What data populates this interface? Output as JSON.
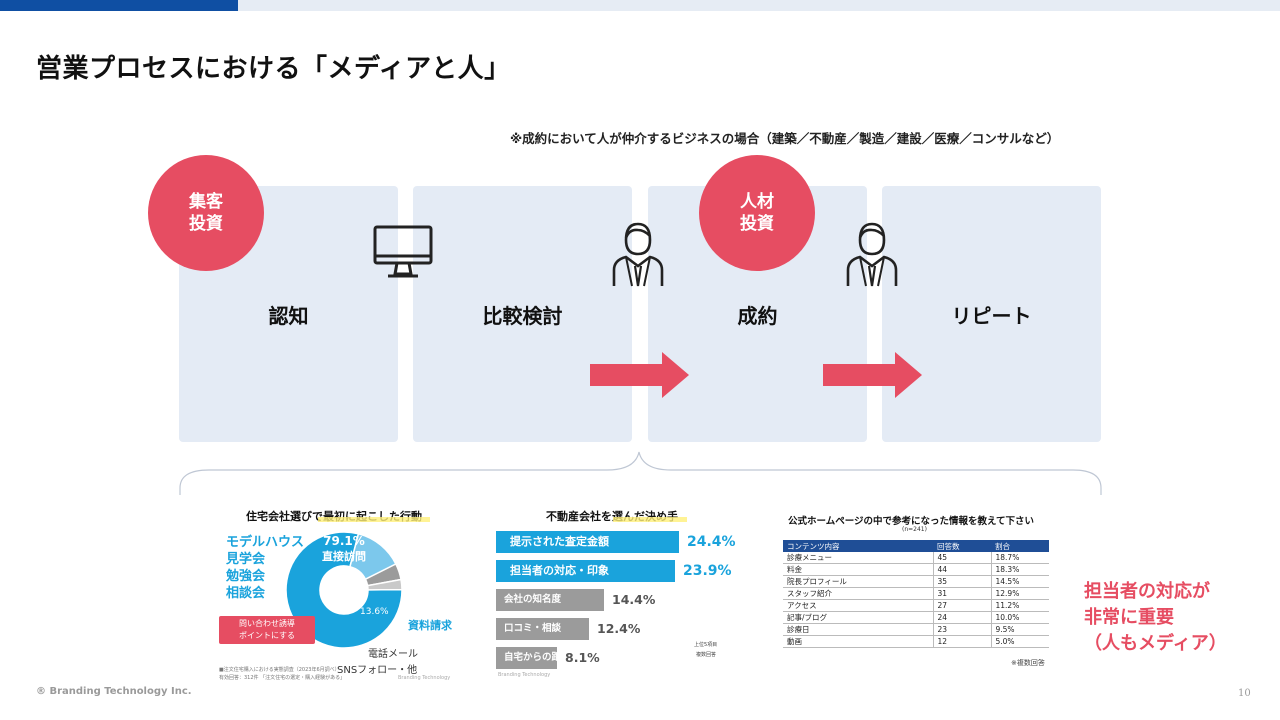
{
  "slide": {
    "title": "営業プロセスにおける「メディアと人」",
    "note": "※成約において人が仲介するビジネスの場合（建築／不動産／製造／建設／医療／コンサルなど）",
    "copyright": "® Branding Technology Inc.",
    "page_number": "10"
  },
  "stages": [
    {
      "label": "認知"
    },
    {
      "label": "比較検討"
    },
    {
      "label": "成約"
    },
    {
      "label": "リピート"
    }
  ],
  "badges": {
    "media": {
      "line1": "集客",
      "line2": "投資"
    },
    "people": {
      "line1": "人材",
      "line2": "投資"
    }
  },
  "icons": [
    "monitor-icon",
    "person-icon",
    "person-icon",
    "arrow-right-icon"
  ],
  "colors": {
    "accent": "#e64d62",
    "stage_bg": "#e4ebf5",
    "brand_blue": "#0f4fa3",
    "chart_cyan": "#1aa3dc",
    "bar_gray": "#9b9b9b",
    "table_header": "#1f4e96"
  },
  "panel1": {
    "title": "住宅会社選びで最初に起こした行動",
    "left_labels": [
      "モデルハウス",
      "見学会",
      "勉強会",
      "相談会"
    ],
    "main_pct": "79.1%",
    "main_label": "直接訪問",
    "small_pct": "13.6%",
    "callout": [
      "問い合わせ誘導",
      "ポイントにする"
    ],
    "label_request": "資料請求",
    "label_phone": "電話メール",
    "label_sns": "SNSフォロー・他",
    "source1": "■注文住宅購入における実態調査（2023年6月調べ）",
    "source2": "有効回答：312件 「注文住宅の選定・購入経験がある」",
    "logo": "Branding Technology"
  },
  "panel2": {
    "title": "不動産会社を選んだ決め手",
    "footnote1": "上位5項目",
    "footnote2": "複数回答",
    "logo": "Branding Technology"
  },
  "panel3": {
    "title": "公式ホームページの中で参考になった情報を教えて下さい",
    "subtitle": "(n=241)",
    "headers": [
      "コンテンツ内容",
      "回答数",
      "割合"
    ],
    "rows": [
      [
        "診療メニュー",
        "45",
        "18.7%"
      ],
      [
        "料金",
        "44",
        "18.3%"
      ],
      [
        "院長プロフィール",
        "35",
        "14.5%"
      ],
      [
        "スタッフ紹介",
        "31",
        "12.9%"
      ],
      [
        "アクセス",
        "27",
        "11.2%"
      ],
      [
        "記事/ブログ",
        "24",
        "10.0%"
      ],
      [
        "診療日",
        "23",
        "9.5%"
      ],
      [
        "動画",
        "12",
        "5.0%"
      ]
    ],
    "footnote": "※複数回答"
  },
  "conclusion": [
    "担当者の対応が",
    "非常に重要",
    "（人もメディア）"
  ],
  "chart_data": [
    {
      "type": "pie",
      "title": "住宅会社選びで最初に起こした行動",
      "categories": [
        "直接訪問",
        "資料請求",
        "電話メール",
        "SNSフォロー・他"
      ],
      "values": [
        79.1,
        13.6,
        4.5,
        2.8
      ]
    },
    {
      "type": "bar",
      "title": "不動産会社を選んだ決め手",
      "categories": [
        "提示された査定金額",
        "担当者の対応・印象",
        "会社の知名度",
        "口コミ・相談",
        "自宅からの距離"
      ],
      "values": [
        24.4,
        23.9,
        14.4,
        12.4,
        8.1
      ],
      "value_labels": [
        "24.4%",
        "23.9%",
        "14.4%",
        "12.4%",
        "8.1%"
      ],
      "highlight": [
        true,
        true,
        false,
        false,
        false
      ]
    }
  ]
}
